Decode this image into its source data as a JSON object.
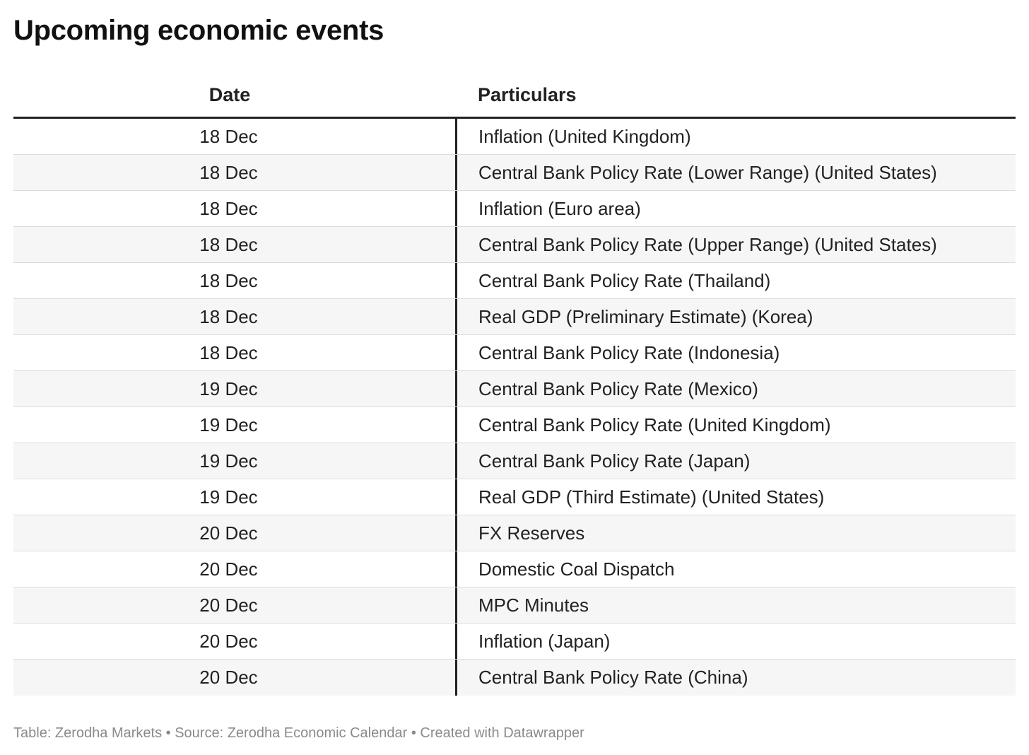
{
  "title": "Upcoming economic events",
  "table": {
    "columns": [
      "Date",
      "Particulars"
    ],
    "rows": [
      {
        "date": "18 Dec",
        "particulars": "Inflation (United Kingdom)"
      },
      {
        "date": "18 Dec",
        "particulars": "Central Bank Policy Rate (Lower Range) (United States)"
      },
      {
        "date": "18 Dec",
        "particulars": "Inflation (Euro area)"
      },
      {
        "date": "18 Dec",
        "particulars": "Central Bank Policy Rate (Upper Range) (United States)"
      },
      {
        "date": "18 Dec",
        "particulars": "Central Bank Policy Rate (Thailand)"
      },
      {
        "date": "18 Dec",
        "particulars": "Real GDP (Preliminary Estimate) (Korea)"
      },
      {
        "date": "18 Dec",
        "particulars": "Central Bank Policy Rate (Indonesia)"
      },
      {
        "date": "19 Dec",
        "particulars": "Central Bank Policy Rate (Mexico)"
      },
      {
        "date": "19 Dec",
        "particulars": "Central Bank Policy Rate (United Kingdom)"
      },
      {
        "date": "19 Dec",
        "particulars": "Central Bank Policy Rate (Japan)"
      },
      {
        "date": "19 Dec",
        "particulars": "Real GDP (Third Estimate) (United States)"
      },
      {
        "date": "20 Dec",
        "particulars": "FX Reserves"
      },
      {
        "date": "20 Dec",
        "particulars": "Domestic Coal Dispatch"
      },
      {
        "date": "20 Dec",
        "particulars": "MPC Minutes"
      },
      {
        "date": "20 Dec",
        "particulars": "Inflation (Japan)"
      },
      {
        "date": "20 Dec",
        "particulars": "Central Bank Policy Rate (China)"
      }
    ]
  },
  "footer": "Table: Zerodha Markets • Source: Zerodha Economic Calendar • Created with Datawrapper",
  "colors": {
    "text": "#222222",
    "stripe": "#f6f6f6",
    "footer": "#8a8a8a"
  }
}
